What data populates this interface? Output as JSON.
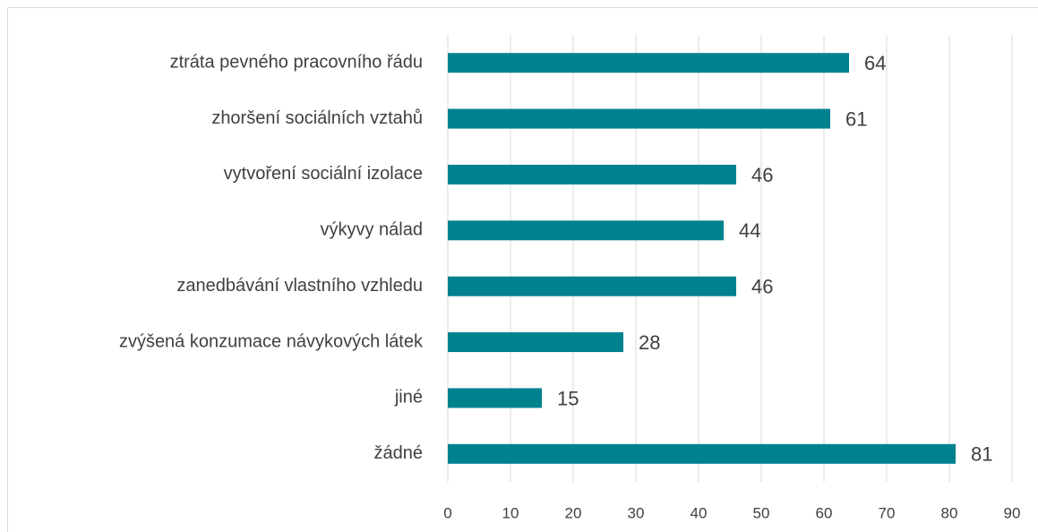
{
  "chart_data": {
    "type": "bar",
    "orientation": "horizontal",
    "categories": [
      "ztráta pevného pracovního řádu",
      "zhoršení sociálních vztahů",
      "vytvoření sociální izolace",
      "výkyvy nálad",
      "zanedbávání vlastního vzhledu",
      "zvýšená konzumace návykových látek",
      "jiné",
      "žádné"
    ],
    "values": [
      64,
      61,
      46,
      44,
      46,
      28,
      15,
      81
    ],
    "color": "#00818e",
    "xlim": [
      0,
      90
    ],
    "xticks": [
      0,
      10,
      20,
      30,
      40,
      50,
      60,
      70,
      80,
      90
    ],
    "grid": true
  }
}
